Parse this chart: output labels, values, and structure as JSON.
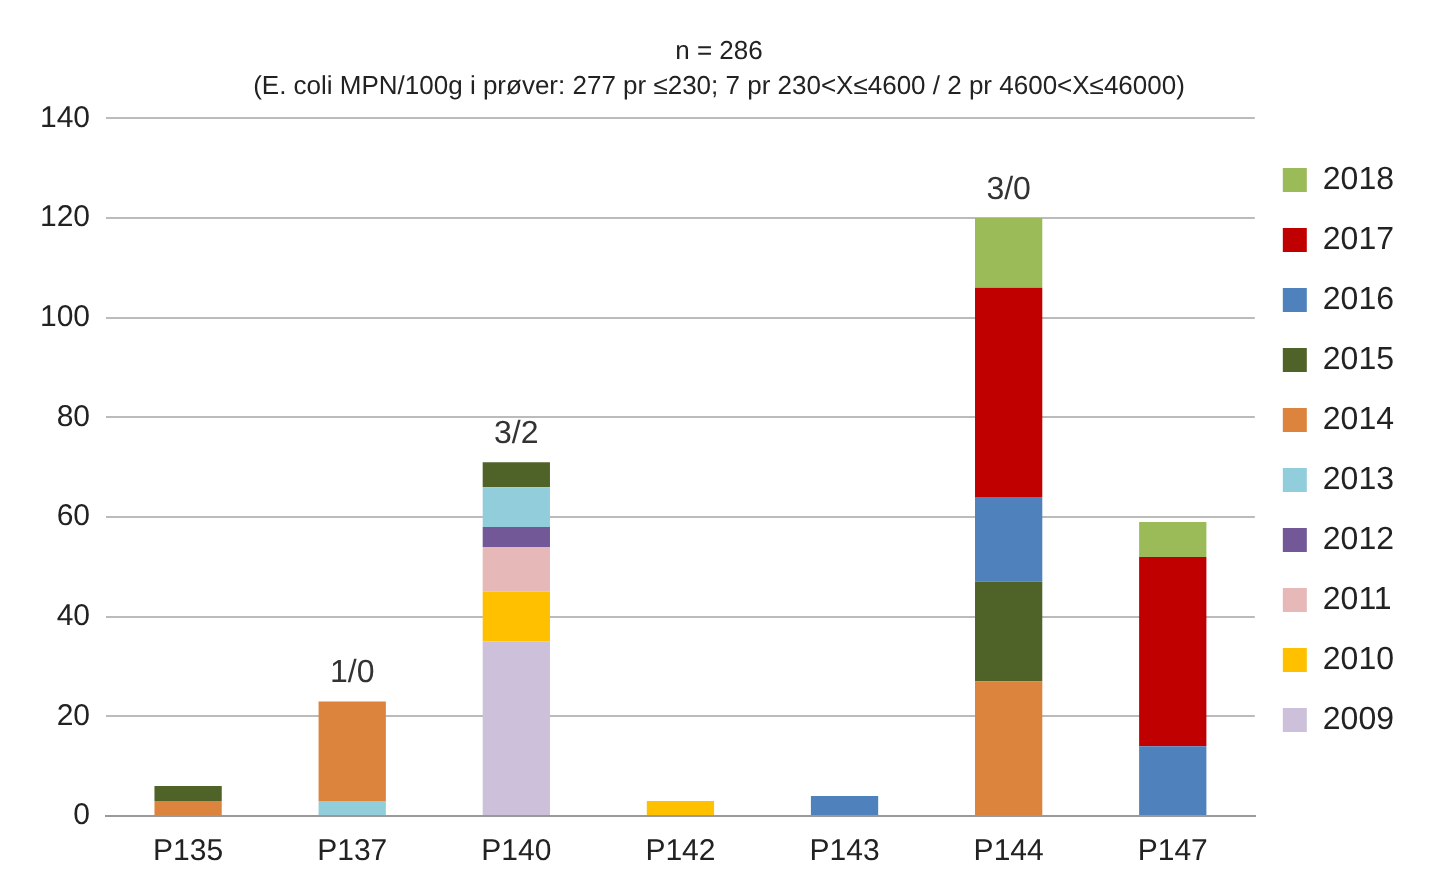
{
  "chart_data": {
    "type": "bar",
    "stacked": true,
    "title": "n = 286",
    "subtitle": "(E. coli MPN/100g i prøver: 277 pr ≤230; 7 pr 230<X≤4600 / 2 pr 4600<X≤46000)",
    "categories": [
      "P135",
      "P137",
      "P140",
      "P142",
      "P143",
      "P144",
      "P147"
    ],
    "series": [
      {
        "name": "2009",
        "color": "#ccc0da",
        "values": [
          null,
          null,
          35,
          null,
          null,
          null,
          null
        ]
      },
      {
        "name": "2010",
        "color": "#ffc000",
        "values": [
          null,
          null,
          10,
          3,
          null,
          null,
          null
        ]
      },
      {
        "name": "2011",
        "color": "#e6b8b7",
        "values": [
          null,
          null,
          9,
          null,
          null,
          null,
          null
        ]
      },
      {
        "name": "2012",
        "color": "#725896",
        "values": [
          null,
          null,
          4,
          null,
          null,
          null,
          null
        ]
      },
      {
        "name": "2013",
        "color": "#92cddc",
        "values": [
          null,
          3,
          8,
          null,
          null,
          null,
          null
        ]
      },
      {
        "name": "2014",
        "color": "#dc843d",
        "values": [
          3,
          20,
          null,
          null,
          null,
          27,
          null
        ]
      },
      {
        "name": "2015",
        "color": "#4f6228",
        "values": [
          3,
          null,
          5,
          null,
          null,
          20,
          null
        ]
      },
      {
        "name": "2016",
        "color": "#4f81bd",
        "values": [
          null,
          null,
          null,
          null,
          4,
          17,
          14
        ]
      },
      {
        "name": "2017",
        "color": "#c00000",
        "values": [
          null,
          null,
          null,
          null,
          null,
          42,
          38
        ]
      },
      {
        "name": "2018",
        "color": "#9bbb59",
        "values": [
          null,
          null,
          null,
          null,
          null,
          14,
          7
        ]
      }
    ],
    "ylim": [
      0,
      140
    ],
    "yticks": [
      0,
      20,
      40,
      60,
      80,
      100,
      120,
      140
    ],
    "grid": "y",
    "legend": "right",
    "annotations": [
      {
        "text": "1/0",
        "x": "P137",
        "y": 23
      },
      {
        "text": "3/2",
        "x": "P140",
        "y": 71
      },
      {
        "text": "3/0",
        "x": "P144",
        "y": 120
      }
    ]
  }
}
